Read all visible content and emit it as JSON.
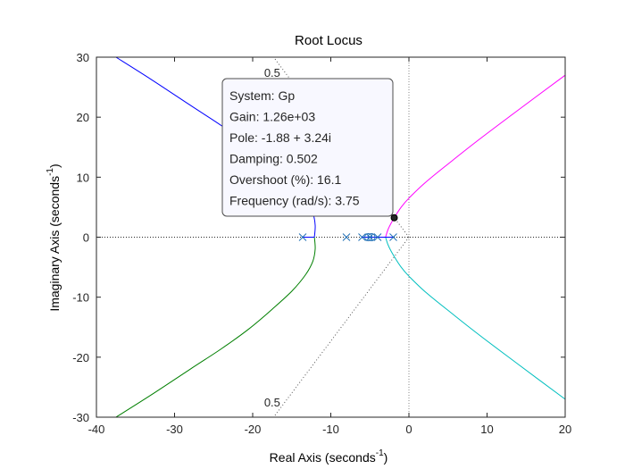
{
  "chart_data": {
    "type": "line",
    "title": "Root Locus",
    "xlabel": "Real Axis (seconds",
    "ylabel": "Imaginary Axis (seconds",
    "axis_unit_exponent": "-1",
    "axis_unit_close": ")",
    "xlim": [
      -40,
      20
    ],
    "ylim": [
      -30,
      30
    ],
    "xticks": [
      -40,
      -30,
      -20,
      -10,
      0,
      10,
      20
    ],
    "yticks": [
      -30,
      -20,
      -10,
      0,
      10,
      20,
      30
    ],
    "grid": false,
    "series": [
      {
        "color": "#0000ff",
        "x": [
          -37.5,
          -33,
          -28,
          -24,
          -20.5,
          -17.5,
          -15,
          -13.2,
          -12.3,
          -12.0,
          -12.1
        ],
        "y": [
          30,
          26.3,
          22.0,
          18.6,
          15.3,
          12.0,
          9.0,
          6.2,
          4.0,
          2.0,
          0
        ]
      },
      {
        "color": "#007f00",
        "x": [
          -12.1,
          -12.0,
          -12.3,
          -13.2,
          -15,
          -17.5,
          -20.5,
          -24,
          -28,
          -33,
          -37.5
        ],
        "y": [
          0,
          -2.0,
          -4.0,
          -6.2,
          -9.0,
          -12.0,
          -15.3,
          -18.6,
          -22.0,
          -26.3,
          -30
        ]
      },
      {
        "color": "#ff00ff",
        "x": [
          -3,
          -2.7,
          -2.3,
          -1.88,
          -1,
          0,
          2,
          5,
          9,
          14,
          20
        ],
        "y": [
          0,
          1.2,
          2.3,
          3.24,
          5.0,
          6.5,
          9.0,
          12.2,
          16.3,
          21.2,
          27
        ]
      },
      {
        "color": "#00bfbf",
        "x": [
          -3,
          -2.7,
          -2.3,
          -1.88,
          -1,
          0,
          2,
          5,
          9,
          14,
          20
        ],
        "y": [
          0,
          -1.2,
          -2.3,
          -3.24,
          -5.0,
          -6.5,
          -9.0,
          -12.2,
          -16.3,
          -21.2,
          -27
        ]
      },
      {
        "color": "#0000ff",
        "x": [
          -13.6,
          -12.1
        ],
        "y": [
          0,
          0
        ]
      },
      {
        "color": "#0000ff",
        "x": [
          -6.0,
          -2.0
        ],
        "y": [
          0,
          0
        ]
      }
    ],
    "poles": [
      {
        "x": -13.6,
        "y": 0
      },
      {
        "x": -8.0,
        "y": 0
      },
      {
        "x": -6.0,
        "y": 0
      },
      {
        "x": -5.0,
        "y": 0
      },
      {
        "x": -4.0,
        "y": 0
      },
      {
        "x": -2.0,
        "y": 0
      }
    ],
    "zeros": [
      {
        "x": -5.2,
        "y": 0
      },
      {
        "x": -4.8,
        "y": 0
      }
    ],
    "damping_line": {
      "damping": 0.5,
      "upper_label": "0.5",
      "lower_label": "0.5",
      "upper_label_at": {
        "x": -17.5,
        "y": 27.5
      },
      "lower_label_at": {
        "x": -17.5,
        "y": -27.5
      }
    },
    "selected_point": {
      "x": -1.88,
      "y": 3.24
    },
    "datatip": {
      "lines": [
        "System: Gp",
        "Gain: 1.26e+03",
        "Pole: -1.88 + 3.24i",
        "Damping: 0.502",
        "Overshoot (%): 16.1",
        "Frequency (rad/s): 3.75"
      ]
    }
  }
}
